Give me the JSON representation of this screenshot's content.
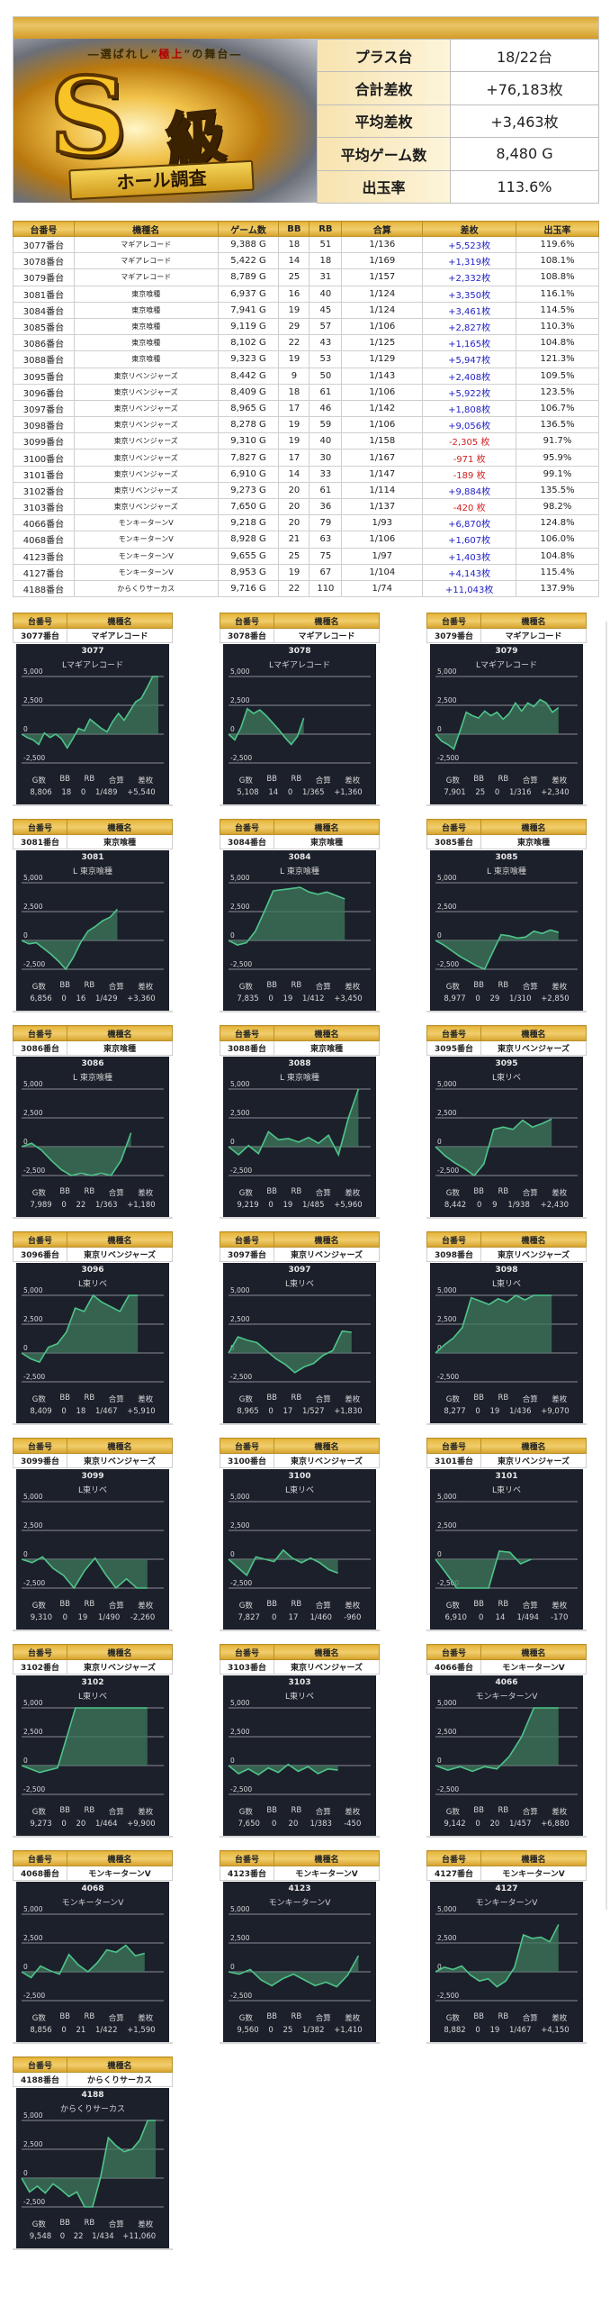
{
  "summary": {
    "banner": {
      "tagline_pre": "―選ばれし“",
      "tagline_highlight": "極上",
      "tagline_post": "“の舞台―",
      "big_letter": "S",
      "rank_label": "級",
      "ribbon": "ホール調査"
    },
    "rows": [
      {
        "label": "プラス台",
        "value": "18/22台"
      },
      {
        "label": "合計差枚",
        "value": "+76,183枚"
      },
      {
        "label": "平均差枚",
        "value": "+3,463枚"
      },
      {
        "label": "平均ゲーム数",
        "value": "8,480 G"
      },
      {
        "label": "出玉率",
        "value": "113.6%"
      }
    ]
  },
  "table": {
    "headers": [
      "台番号",
      "機種名",
      "ゲーム数",
      "BB",
      "RB",
      "合算",
      "差枚",
      "出玉率"
    ],
    "rows": [
      {
        "no": "3077番台",
        "name": "マギアレコード",
        "games": "9,388 G",
        "bb": "18",
        "rb": "51",
        "gousan": "1/136",
        "diff": "+5,523枚",
        "sign": "plus",
        "rate": "119.6%"
      },
      {
        "no": "3078番台",
        "name": "マギアレコード",
        "games": "5,422 G",
        "bb": "14",
        "rb": "18",
        "gousan": "1/169",
        "diff": "+1,319枚",
        "sign": "plus",
        "rate": "108.1%"
      },
      {
        "no": "3079番台",
        "name": "マギアレコード",
        "games": "8,789 G",
        "bb": "25",
        "rb": "31",
        "gousan": "1/157",
        "diff": "+2,332枚",
        "sign": "plus",
        "rate": "108.8%"
      },
      {
        "no": "3081番台",
        "name": "東京喰種",
        "games": "6,937 G",
        "bb": "16",
        "rb": "40",
        "gousan": "1/124",
        "diff": "+3,350枚",
        "sign": "plus",
        "rate": "116.1%"
      },
      {
        "no": "3084番台",
        "name": "東京喰種",
        "games": "7,941 G",
        "bb": "19",
        "rb": "45",
        "gousan": "1/124",
        "diff": "+3,461枚",
        "sign": "plus",
        "rate": "114.5%"
      },
      {
        "no": "3085番台",
        "name": "東京喰種",
        "games": "9,119 G",
        "bb": "29",
        "rb": "57",
        "gousan": "1/106",
        "diff": "+2,827枚",
        "sign": "plus",
        "rate": "110.3%"
      },
      {
        "no": "3086番台",
        "name": "東京喰種",
        "games": "8,102 G",
        "bb": "22",
        "rb": "43",
        "gousan": "1/125",
        "diff": "+1,165枚",
        "sign": "plus",
        "rate": "104.8%"
      },
      {
        "no": "3088番台",
        "name": "東京喰種",
        "games": "9,323 G",
        "bb": "19",
        "rb": "53",
        "gousan": "1/129",
        "diff": "+5,947枚",
        "sign": "plus",
        "rate": "121.3%"
      },
      {
        "no": "3095番台",
        "name": "東京リベンジャーズ",
        "games": "8,442 G",
        "bb": "9",
        "rb": "50",
        "gousan": "1/143",
        "diff": "+2,408枚",
        "sign": "plus",
        "rate": "109.5%"
      },
      {
        "no": "3096番台",
        "name": "東京リベンジャーズ",
        "games": "8,409 G",
        "bb": "18",
        "rb": "61",
        "gousan": "1/106",
        "diff": "+5,922枚",
        "sign": "plus",
        "rate": "123.5%"
      },
      {
        "no": "3097番台",
        "name": "東京リベンジャーズ",
        "games": "8,965 G",
        "bb": "17",
        "rb": "46",
        "gousan": "1/142",
        "diff": "+1,808枚",
        "sign": "plus",
        "rate": "106.7%"
      },
      {
        "no": "3098番台",
        "name": "東京リベンジャーズ",
        "games": "8,278 G",
        "bb": "19",
        "rb": "59",
        "gousan": "1/106",
        "diff": "+9,056枚",
        "sign": "plus",
        "rate": "136.5%"
      },
      {
        "no": "3099番台",
        "name": "東京リベンジャーズ",
        "games": "9,310 G",
        "bb": "19",
        "rb": "40",
        "gousan": "1/158",
        "diff": "-2,305 枚",
        "sign": "minus",
        "rate": "91.7%"
      },
      {
        "no": "3100番台",
        "name": "東京リベンジャーズ",
        "games": "7,827 G",
        "bb": "17",
        "rb": "30",
        "gousan": "1/167",
        "diff": "-971 枚",
        "sign": "minus",
        "rate": "95.9%"
      },
      {
        "no": "3101番台",
        "name": "東京リベンジャーズ",
        "games": "6,910 G",
        "bb": "14",
        "rb": "33",
        "gousan": "1/147",
        "diff": "-189 枚",
        "sign": "minus",
        "rate": "99.1%"
      },
      {
        "no": "3102番台",
        "name": "東京リベンジャーズ",
        "games": "9,273 G",
        "bb": "20",
        "rb": "61",
        "gousan": "1/114",
        "diff": "+9,884枚",
        "sign": "plus",
        "rate": "135.5%"
      },
      {
        "no": "3103番台",
        "name": "東京リベンジャーズ",
        "games": "7,650 G",
        "bb": "20",
        "rb": "36",
        "gousan": "1/137",
        "diff": "-420 枚",
        "sign": "minus",
        "rate": "98.2%"
      },
      {
        "no": "4066番台",
        "name": "モンキーターンV",
        "games": "9,218 G",
        "bb": "20",
        "rb": "79",
        "gousan": "1/93",
        "diff": "+6,870枚",
        "sign": "plus",
        "rate": "124.8%"
      },
      {
        "no": "4068番台",
        "name": "モンキーターンV",
        "games": "8,928 G",
        "bb": "21",
        "rb": "63",
        "gousan": "1/106",
        "diff": "+1,607枚",
        "sign": "plus",
        "rate": "106.0%"
      },
      {
        "no": "4123番台",
        "name": "モンキーターンV",
        "games": "9,655 G",
        "bb": "25",
        "rb": "75",
        "gousan": "1/97",
        "diff": "+1,403枚",
        "sign": "plus",
        "rate": "104.8%"
      },
      {
        "no": "4127番台",
        "name": "モンキーターンV",
        "games": "8,953 G",
        "bb": "19",
        "rb": "67",
        "gousan": "1/104",
        "diff": "+4,143枚",
        "sign": "plus",
        "rate": "115.4%"
      },
      {
        "no": "4188番台",
        "name": "からくりサーカス",
        "games": "9,716 G",
        "bb": "22",
        "rb": "110",
        "gousan": "1/74",
        "diff": "+11,043枚",
        "sign": "plus",
        "rate": "137.9%"
      }
    ]
  },
  "cards_common": {
    "header_no": "台番号",
    "header_name": "機種名",
    "y_ticks": [
      "5,000",
      "2,500",
      "0",
      "-2,500"
    ],
    "stat_labels": [
      "G数",
      "BB",
      "RB",
      "合算",
      "差枚"
    ],
    "line_color": "#4fc48a",
    "fill_color": "#3e7a5e",
    "panel_bg": "#1c202b"
  },
  "cards": [
    {
      "no": "3077番台",
      "name": "マギアレコード",
      "num": "3077",
      "sub": "Lマギアレコード",
      "g": "8,806",
      "bb": "18",
      "rb": "0",
      "gousan": "1/489",
      "diff": "+5,540",
      "points": [
        0,
        -300,
        -500,
        -900,
        100,
        -300,
        0,
        -400,
        -1200,
        -400,
        500,
        300,
        1300,
        900,
        500,
        200,
        1100,
        1800,
        1200,
        2000,
        2800,
        3100,
        4000,
        5000,
        5000
      ],
      "end": 1.0
    },
    {
      "no": "3078番台",
      "name": "マギアレコード",
      "num": "3078",
      "sub": "Lマギアレコード",
      "g": "5,108",
      "bb": "14",
      "rb": "0",
      "gousan": "1/365",
      "diff": "+1,360",
      "points": [
        0,
        -500,
        600,
        2200,
        1800,
        2100,
        1600,
        1000,
        400,
        -300,
        -900,
        -200,
        1400
      ],
      "end": 0.55
    },
    {
      "no": "3079番台",
      "name": "マギアレコード",
      "num": "3079",
      "sub": "Lマギアレコード",
      "g": "7,901",
      "bb": "25",
      "rb": "0",
      "gousan": "1/316",
      "diff": "+2,340",
      "points": [
        0,
        -600,
        -900,
        -1300,
        300,
        1900,
        1600,
        1400,
        2000,
        1600,
        1900,
        1300,
        1800,
        2700,
        2000,
        2700,
        2400,
        3000,
        2700,
        1900,
        2300
      ],
      "end": 0.9
    },
    {
      "no": "3081番台",
      "name": "東京喰種",
      "num": "3081",
      "sub": "L 東京喰種",
      "g": "6,856",
      "bb": "0",
      "rb": "16",
      "gousan": "1/429",
      "diff": "+3,360",
      "points": [
        0,
        -300,
        -200,
        -700,
        -1200,
        -1800,
        -2500,
        -1500,
        -200,
        800,
        1200,
        1700,
        2000,
        2700
      ],
      "end": 0.7
    },
    {
      "no": "3084番台",
      "name": "東京喰種",
      "num": "3084",
      "sub": "L 東京喰種",
      "g": "7,835",
      "bb": "0",
      "rb": "19",
      "gousan": "1/412",
      "diff": "+3,450",
      "points": [
        0,
        -400,
        -200,
        800,
        2500,
        4300,
        4400,
        4500,
        4600,
        4200,
        4000,
        4200,
        3900,
        3600
      ],
      "end": 0.85
    },
    {
      "no": "3085番台",
      "name": "東京喰種",
      "num": "3085",
      "sub": "L 東京喰種",
      "g": "8,977",
      "bb": "0",
      "rb": "29",
      "gousan": "1/310",
      "diff": "+2,850",
      "points": [
        0,
        -400,
        -900,
        -1400,
        -1800,
        -2200,
        -2500,
        -1000,
        500,
        400,
        200,
        300,
        800,
        600,
        900,
        700
      ],
      "end": 0.9
    },
    {
      "no": "3086番台",
      "name": "東京喰種",
      "num": "3086",
      "sub": "L 東京喰種",
      "g": "7,989",
      "bb": "0",
      "rb": "22",
      "gousan": "1/363",
      "diff": "+1,180",
      "points": [
        0,
        300,
        -300,
        -1200,
        -2000,
        -2500,
        -2300,
        -2500,
        -2300,
        -2500,
        -1200,
        1200
      ],
      "end": 0.8
    },
    {
      "no": "3088番台",
      "name": "東京喰種",
      "num": "3088",
      "sub": "L 東京喰種",
      "g": "9,219",
      "bb": "0",
      "rb": "19",
      "gousan": "1/485",
      "diff": "+5,960",
      "points": [
        0,
        -700,
        100,
        -600,
        1300,
        600,
        700,
        400,
        800,
        300,
        1000,
        -700,
        2500,
        5000
      ],
      "end": 0.95
    },
    {
      "no": "3095番台",
      "name": "東京リベンジャーズ",
      "num": "3095",
      "sub": "L東リベ",
      "g": "8,442",
      "bb": "0",
      "rb": "9",
      "gousan": "1/938",
      "diff": "+2,430",
      "points": [
        0,
        -800,
        -1400,
        -1900,
        -2500,
        -1500,
        1500,
        1700,
        1500,
        2300,
        1700,
        2000,
        2400
      ],
      "end": 0.85
    },
    {
      "no": "3096番台",
      "name": "東京リベンジャーズ",
      "num": "3096",
      "sub": "L東リベ",
      "g": "8,409",
      "bb": "0",
      "rb": "18",
      "gousan": "1/467",
      "diff": "+5,910",
      "points": [
        0,
        -500,
        -800,
        500,
        800,
        1800,
        3900,
        3600,
        5000,
        4400,
        4000,
        3600,
        5000,
        5000
      ],
      "end": 0.85
    },
    {
      "no": "3097番台",
      "name": "東京リベンジャーズ",
      "num": "3097",
      "sub": "L東リベ",
      "g": "8,965",
      "bb": "0",
      "rb": "17",
      "gousan": "1/527",
      "diff": "+1,830",
      "points": [
        0,
        1400,
        1100,
        900,
        200,
        -500,
        -1000,
        -1700,
        -1200,
        -900,
        -200,
        200,
        1900,
        1800
      ],
      "end": 0.9
    },
    {
      "no": "3098番台",
      "name": "東京リベンジャーズ",
      "num": "3098",
      "sub": "L東リベ",
      "g": "8,277",
      "bb": "0",
      "rb": "19",
      "gousan": "1/436",
      "diff": "+9,070",
      "points": [
        0,
        700,
        1300,
        2200,
        4800,
        4500,
        4200,
        4700,
        4400,
        5000,
        4600,
        5000,
        5000,
        5000
      ],
      "end": 0.85
    },
    {
      "no": "3099番台",
      "name": "東京リベンジャーズ",
      "num": "3099",
      "sub": "L東リベ",
      "g": "9,310",
      "bb": "0",
      "rb": "19",
      "gousan": "1/490",
      "diff": "-2,260",
      "points": [
        0,
        -300,
        200,
        -800,
        -1400,
        -2500,
        -1000,
        100,
        -1300,
        -2500,
        -1700,
        -2500,
        -2500
      ],
      "end": 0.92
    },
    {
      "no": "3100番台",
      "name": "東京リベンジャーズ",
      "num": "3100",
      "sub": "L東リベ",
      "g": "7,827",
      "bb": "0",
      "rb": "17",
      "gousan": "1/460",
      "diff": "-960",
      "points": [
        0,
        -700,
        -1400,
        200,
        0,
        -200,
        800,
        100,
        -300,
        100,
        -300,
        -900,
        -1200
      ],
      "end": 0.8
    },
    {
      "no": "3101番台",
      "name": "東京リベンジャーズ",
      "num": "3101",
      "sub": "L東リベ",
      "g": "6,910",
      "bb": "0",
      "rb": "14",
      "gousan": "1/494",
      "diff": "-170",
      "points": [
        0,
        -1200,
        -2500,
        -2500,
        -2500,
        -2500,
        700,
        600,
        -400,
        0
      ],
      "end": 0.7
    },
    {
      "no": "3102番台",
      "name": "東京リベンジャーズ",
      "num": "3102",
      "sub": "L東リベ",
      "g": "9,273",
      "bb": "0",
      "rb": "20",
      "gousan": "1/464",
      "diff": "+9,900",
      "points": [
        0,
        -600,
        -200,
        5000,
        5000,
        5000,
        5000,
        5000
      ],
      "end": 0.92
    },
    {
      "no": "3103番台",
      "name": "東京リベンジャーズ",
      "num": "3103",
      "sub": "L東リベ",
      "g": "7,650",
      "bb": "0",
      "rb": "20",
      "gousan": "1/383",
      "diff": "-450",
      "points": [
        0,
        -700,
        -300,
        -800,
        -200,
        -600,
        100,
        -500,
        -100,
        -700,
        -300,
        -400
      ],
      "end": 0.8
    },
    {
      "no": "4066番台",
      "name": "モンキーターンV",
      "num": "4066",
      "sub": "モンキーターンV",
      "g": "9,142",
      "bb": "0",
      "rb": "20",
      "gousan": "1/457",
      "diff": "+6,880",
      "points": [
        0,
        -400,
        -100,
        -500,
        -100,
        -300,
        800,
        2500,
        5000,
        5000,
        5000
      ],
      "end": 0.9
    },
    {
      "no": "4068番台",
      "name": "モンキーターンV",
      "num": "4068",
      "sub": "モンキーターンV",
      "g": "8,856",
      "bb": "0",
      "rb": "21",
      "gousan": "1/422",
      "diff": "+1,590",
      "points": [
        0,
        -500,
        500,
        100,
        -200,
        1500,
        600,
        0,
        800,
        1900,
        1700,
        2300,
        1400,
        1600
      ],
      "end": 0.9
    },
    {
      "no": "4123番台",
      "name": "モンキーターンV",
      "num": "4123",
      "sub": "モンキーターンV",
      "g": "9,560",
      "bb": "0",
      "rb": "25",
      "gousan": "1/382",
      "diff": "+1,410",
      "points": [
        0,
        -200,
        200,
        -700,
        -1200,
        -600,
        -200,
        -700,
        -1200,
        -900,
        -1300,
        -300,
        1400
      ],
      "end": 0.95
    },
    {
      "no": "4127番台",
      "name": "モンキーターンV",
      "num": "4127",
      "sub": "モンキーターンV",
      "g": "8,882",
      "bb": "0",
      "rb": "19",
      "gousan": "1/467",
      "diff": "+4,150",
      "points": [
        0,
        400,
        200,
        500,
        -300,
        -800,
        -600,
        -1300,
        -800,
        400,
        3200,
        2900,
        3000,
        2600,
        4100
      ],
      "end": 0.9
    },
    {
      "no": "4188番台",
      "name": "からくりサーカス",
      "num": "4188",
      "sub": "からくりサーカス",
      "g": "9,548",
      "bb": "0",
      "rb": "22",
      "gousan": "1/434",
      "diff": "+11,060",
      "points": [
        0,
        -1200,
        -700,
        -1300,
        -500,
        -1000,
        -1600,
        -1200,
        -2500,
        -2500,
        0,
        3500,
        2800,
        2300,
        2500,
        3300,
        5000,
        5000
      ],
      "end": 0.98
    }
  ]
}
